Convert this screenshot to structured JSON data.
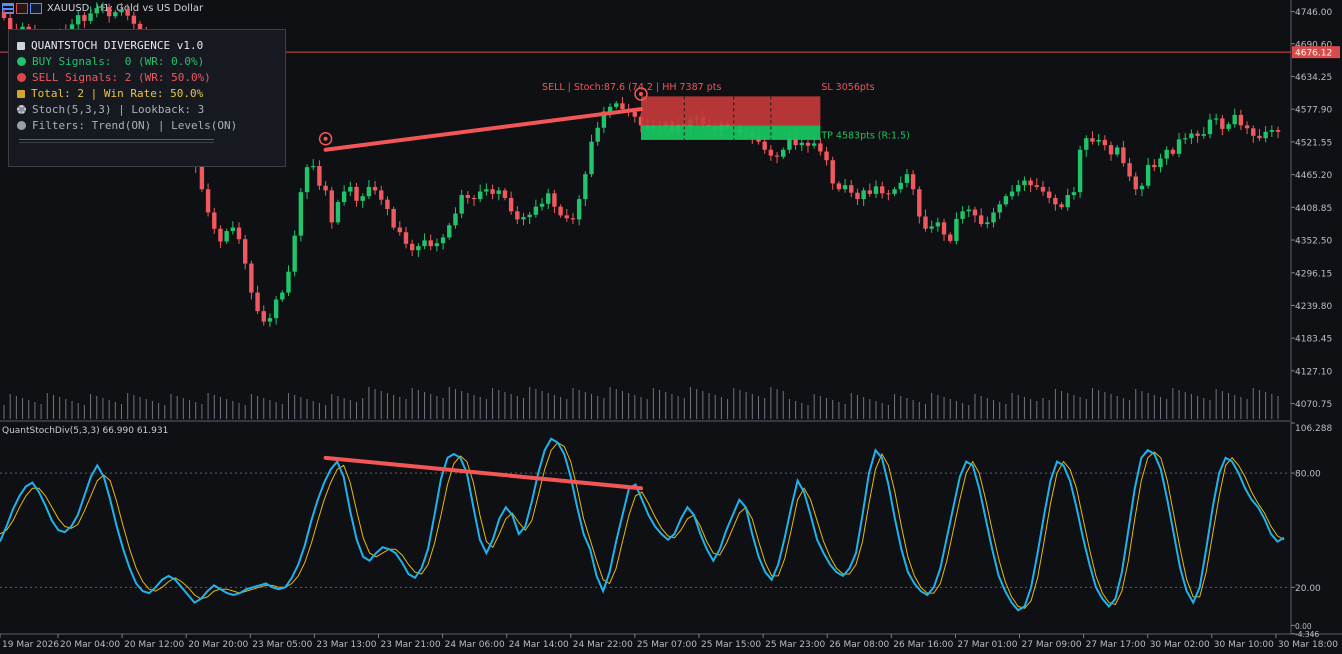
{
  "window": {
    "title": "XAUUSD, H1:  Gold vs US Dollar"
  },
  "panel": {
    "title": "QUANTSTOCH DIVERGENCE v1.0",
    "buy": "BUY Signals:  0 (WR: 0.0%)",
    "sell": "SELL Signals: 2 (WR: 50.0%)",
    "total": "Total: 2 | Win Rate: 50.0%",
    "stoch": "Stoch(5,3,3) | Lookback: 3",
    "filters": "Filters: Trend(ON) | Levels(ON)",
    "icons": [
      "chart-icon",
      "green-dot-icon",
      "red-dot-icon",
      "sum-icon",
      "gear-icon",
      "filter-icon"
    ]
  },
  "colors": {
    "background": "#0f1014",
    "bull": "#21c46b",
    "bear": "#f0595f",
    "stoch_main": "#1fb3ee",
    "stoch_signal": "#e8b80c",
    "divergence": "#f25656",
    "price_line": "#d94a4a",
    "sl_box": "#c93a3a",
    "tp_box": "#17c45f"
  },
  "chart_data": [
    {
      "type": "candlestick",
      "symbol": "XAUUSD",
      "timeframe": "H1",
      "title": "XAUUSD, H1:  Gold vs US Dollar",
      "ylim": [
        4042.5,
        4766.0
      ],
      "yticks": [
        4746.0,
        4690.6,
        4634.25,
        4577.9,
        4521.55,
        4465.2,
        4408.85,
        4352.5,
        4296.15,
        4239.8,
        4183.45,
        4127.1,
        4070.75
      ],
      "current_price": "4676.12",
      "xticks": [
        "19 Mar 2026",
        "20 Mar 04:00",
        "20 Mar 12:00",
        "20 Mar 20:00",
        "23 Mar 05:00",
        "23 Mar 13:00",
        "23 Mar 21:00",
        "24 Mar 06:00",
        "24 Mar 14:00",
        "24 Mar 22:00",
        "25 Mar 07:00",
        "25 Mar 15:00",
        "25 Mar 23:00",
        "26 Mar 08:00",
        "26 Mar 16:00",
        "27 Mar 01:00",
        "27 Mar 09:00",
        "27 Mar 17:00",
        "30 Mar 02:00",
        "30 Mar 10:00",
        "30 Mar 18:00"
      ],
      "close": [
        4735,
        4716,
        4700,
        4720,
        4711,
        4693,
        4684,
        4690,
        4703,
        4713,
        4707,
        4724,
        4740,
        4730,
        4743,
        4752,
        4754,
        4738,
        4745,
        4750,
        4739,
        4725,
        4708,
        4690,
        4672,
        4655,
        4640,
        4615,
        4590,
        4560,
        4520,
        4480,
        4440,
        4400,
        4372,
        4350,
        4368,
        4374,
        4354,
        4312,
        4262,
        4230,
        4212,
        4218,
        4250,
        4262,
        4298,
        4360,
        4435,
        4478,
        4480,
        4446,
        4438,
        4383,
        4418,
        4436,
        4444,
        4420,
        4428,
        4444,
        4438,
        4422,
        4406,
        4374,
        4366,
        4346,
        4335,
        4342,
        4352,
        4342,
        4347,
        4357,
        4378,
        4398,
        4430,
        4425,
        4423,
        4436,
        4440,
        4432,
        4438,
        4425,
        4402,
        4388,
        4392,
        4396,
        4410,
        4415,
        4433,
        4410,
        4395,
        4390,
        4388,
        4423,
        4466,
        4522,
        4546,
        4574,
        4582,
        4588,
        4578,
        4573,
        4565,
        4550,
        4545,
        4550,
        4548,
        4555,
        4540,
        4552,
        4547,
        4560,
        4564,
        4551,
        4549,
        4542,
        4553,
        4547,
        4544,
        4538,
        4539,
        4530,
        4522,
        4508,
        4498,
        4496,
        4508,
        4528,
        4516,
        4520,
        4515,
        4519,
        4505,
        4490,
        4450,
        4440,
        4447,
        4434,
        4423,
        4438,
        4432,
        4445,
        4433,
        4432,
        4440,
        4451,
        4466,
        4440,
        4393,
        4372,
        4376,
        4383,
        4362,
        4351,
        4389,
        4402,
        4405,
        4395,
        4380,
        4383,
        4400,
        4414,
        4428,
        4436,
        4447,
        4455,
        4447,
        4444,
        4436,
        4425,
        4414,
        4409,
        4430,
        4435,
        4508,
        4528,
        4522,
        4525,
        4516,
        4500,
        4512,
        4485,
        4462,
        4440,
        4446,
        4482,
        4478,
        4493,
        4508,
        4501,
        4526,
        4528,
        4536,
        4532,
        4535,
        4560,
        4562,
        4544,
        4552,
        4568,
        4550,
        4545,
        4532,
        4528,
        4539,
        4542,
        4539
      ],
      "volume_profile": "tick volume histogram",
      "annotations": {
        "sell_label": "SELL | Stoch:87.6 (74.2 | HH 7387 pts",
        "sl_label": "SL 3056pts",
        "tp_label": "TP 4583pts (R:1.5)"
      }
    },
    {
      "type": "line",
      "title": "QuantStochDiv(5,3,3) 66.990 61.931",
      "ylim": [
        -4.5,
        106.288
      ],
      "yticks": [
        106.288,
        80.0,
        20.0,
        0.0,
        -4.346
      ],
      "ytick_labels": [
        "106.288",
        "80.00",
        "20.00",
        "0.00",
        "-4.346"
      ],
      "series": [
        {
          "values": [
            44,
            52,
            61,
            68,
            73,
            75,
            70,
            63,
            55,
            50,
            49,
            52,
            58,
            68,
            78,
            84,
            78,
            66,
            52,
            40,
            30,
            22,
            18,
            17,
            20,
            24,
            26,
            24,
            20,
            16,
            12,
            14,
            18,
            21,
            19,
            17,
            16,
            17,
            19,
            20,
            21,
            22,
            20,
            19,
            20,
            25,
            32,
            42,
            55,
            66,
            75,
            82,
            86,
            78,
            60,
            45,
            36,
            34,
            38,
            41,
            40,
            38,
            33,
            27,
            25,
            30,
            40,
            58,
            77,
            88,
            90,
            88,
            80,
            62,
            45,
            38,
            45,
            56,
            62,
            58,
            48,
            52,
            65,
            80,
            92,
            98,
            96,
            90,
            78,
            62,
            48,
            40,
            26,
            18,
            28,
            44,
            58,
            72,
            74,
            66,
            58,
            52,
            48,
            45,
            48,
            56,
            62,
            58,
            48,
            40,
            34,
            40,
            50,
            58,
            66,
            62,
            48,
            36,
            28,
            24,
            32,
            46,
            62,
            76,
            70,
            58,
            45,
            38,
            32,
            28,
            26,
            30,
            38,
            58,
            80,
            92,
            88,
            74,
            56,
            40,
            28,
            22,
            18,
            16,
            20,
            30,
            46,
            62,
            78,
            86,
            84,
            72,
            56,
            40,
            26,
            18,
            12,
            8,
            10,
            20,
            38,
            58,
            76,
            86,
            84,
            76,
            62,
            46,
            32,
            20,
            14,
            10,
            14,
            28,
            50,
            72,
            88,
            92,
            90,
            82,
            66,
            48,
            30,
            18,
            12,
            20,
            40,
            62,
            80,
            88,
            86,
            80,
            72,
            66,
            62,
            56,
            48,
            44,
            46
          ]
        },
        {
          "values": [
            48,
            50,
            55,
            62,
            68,
            72,
            72,
            68,
            62,
            56,
            52,
            51,
            53,
            60,
            68,
            76,
            79,
            76,
            65,
            52,
            40,
            30,
            23,
            19,
            18,
            20,
            23,
            25,
            23,
            20,
            16,
            14,
            15,
            18,
            19,
            19,
            18,
            17,
            18,
            19,
            20,
            21,
            21,
            20,
            20,
            22,
            26,
            33,
            43,
            55,
            66,
            75,
            82,
            84,
            75,
            60,
            46,
            38,
            36,
            38,
            40,
            40,
            37,
            32,
            28,
            27,
            32,
            43,
            58,
            74,
            85,
            89,
            86,
            75,
            58,
            44,
            41,
            48,
            56,
            59,
            54,
            50,
            55,
            68,
            82,
            92,
            96,
            94,
            86,
            72,
            56,
            45,
            34,
            24,
            22,
            30,
            44,
            58,
            68,
            70,
            64,
            57,
            51,
            47,
            46,
            50,
            56,
            58,
            52,
            44,
            38,
            37,
            43,
            51,
            59,
            62,
            56,
            44,
            33,
            26,
            26,
            35,
            50,
            66,
            72,
            66,
            55,
            44,
            36,
            30,
            27,
            27,
            32,
            44,
            64,
            82,
            90,
            84,
            70,
            52,
            36,
            26,
            20,
            17,
            17,
            22,
            34,
            50,
            66,
            80,
            86,
            80,
            66,
            50,
            35,
            23,
            15,
            10,
            9,
            13,
            25,
            44,
            64,
            80,
            86,
            82,
            72,
            56,
            40,
            26,
            17,
            12,
            11,
            18,
            34,
            56,
            76,
            88,
            91,
            88,
            76,
            58,
            40,
            24,
            15,
            15,
            28,
            48,
            68,
            84,
            88,
            84,
            78,
            70,
            64,
            59,
            52,
            47,
            45
          ]
        }
      ],
      "series_roles": [
        "main",
        "signal"
      ],
      "levels": [
        80,
        20
      ]
    }
  ]
}
